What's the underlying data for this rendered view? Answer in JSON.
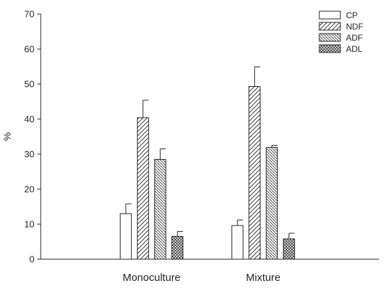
{
  "chart_data": {
    "type": "bar",
    "title": "",
    "xlabel": "",
    "ylabel": "%",
    "ylim": [
      0,
      70
    ],
    "yticks": [
      0,
      10,
      20,
      30,
      40,
      50,
      60,
      70
    ],
    "grid": false,
    "legend_position": "top-right",
    "categories": [
      "Monoculture",
      "Mixture"
    ],
    "series": [
      {
        "name": "CP",
        "pattern": "blank",
        "values": [
          13.0,
          9.6
        ],
        "errors": [
          2.8,
          1.6
        ]
      },
      {
        "name": "NDF",
        "pattern": "diagonal-up",
        "values": [
          40.4,
          49.3
        ],
        "errors": [
          5.0,
          5.6
        ]
      },
      {
        "name": "ADF",
        "pattern": "diagonal-down",
        "values": [
          28.5,
          31.9
        ],
        "errors": [
          3.0,
          0.6
        ]
      },
      {
        "name": "ADL",
        "pattern": "crosshatch",
        "values": [
          6.5,
          5.8
        ],
        "errors": [
          1.4,
          1.6
        ]
      }
    ]
  }
}
